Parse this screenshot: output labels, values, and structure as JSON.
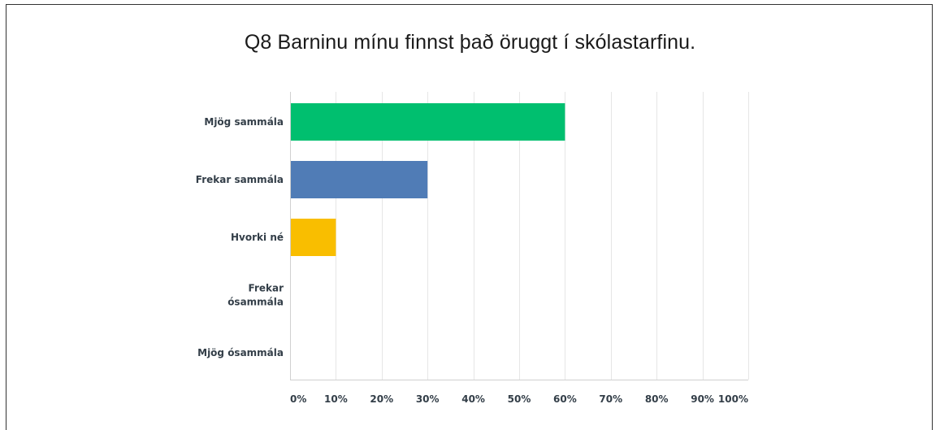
{
  "chart_data": {
    "type": "bar",
    "orientation": "horizontal",
    "title": "Q8 Barninu mínu finnst það öruggt í skólastarfinu.",
    "categories": [
      [
        "Mjög sammála"
      ],
      [
        "Frekar sammála"
      ],
      [
        "Hvorki né"
      ],
      [
        "Frekar",
        "ósammála"
      ],
      [
        "Mjög ósammála"
      ]
    ],
    "values": [
      60,
      30,
      10,
      0,
      0
    ],
    "colors": [
      "#00bf6f",
      "#507cb6",
      "#f9be00",
      "#6bc8cd",
      "#ff8b4f"
    ],
    "xlim": [
      0,
      100
    ],
    "ticks": [
      "0%",
      "10%",
      "20%",
      "30%",
      "40%",
      "50%",
      "60%",
      "70%",
      "80%",
      "90%",
      "100%"
    ],
    "grid": true,
    "legend": "none"
  }
}
